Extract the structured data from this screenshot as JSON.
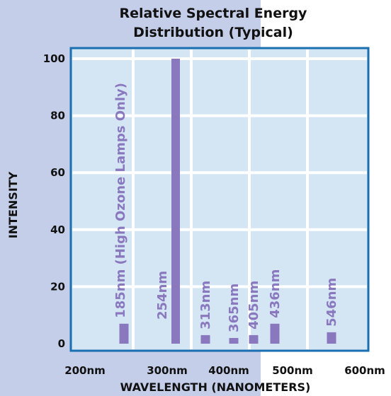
{
  "chart_data": {
    "type": "bar",
    "title": "Relative Spectral Energy Distribution (Typical)",
    "title_lines": [
      "Relative Spectral Energy",
      "Distribution (Typical)"
    ],
    "xlabel": "WAVELENGTH (NANOMETERS)",
    "ylabel": "INTENSITY",
    "x_ticks": [
      "200nm",
      "300nm",
      "400nm",
      "500nm",
      "600nm"
    ],
    "x_tick_values": [
      200,
      300,
      400,
      500,
      600
    ],
    "y_ticks": [
      "0",
      "20",
      "40",
      "60",
      "80",
      "100"
    ],
    "y_tick_values": [
      0,
      20,
      40,
      60,
      80,
      100
    ],
    "xlim": [
      200,
      600
    ],
    "ylim": [
      0,
      100
    ],
    "grid": true,
    "bars": [
      {
        "x": 185,
        "label": "185nm (High Ozone Lamps Only)",
        "value": 7
      },
      {
        "x": 254,
        "label": "254nm",
        "value": 100
      },
      {
        "x": 313,
        "label": "313nm",
        "value": 3
      },
      {
        "x": 365,
        "label": "365nm",
        "value": 2
      },
      {
        "x": 405,
        "label": "405nm",
        "value": 3
      },
      {
        "x": 436,
        "label": "436nm",
        "value": 7
      },
      {
        "x": 546,
        "label": "546nm",
        "value": 4
      }
    ],
    "colors": {
      "bar": "#8a78be",
      "plot_background": "#d4e6f4",
      "plot_border": "#1a6fb0",
      "grid": "#ffffff",
      "page_band": "#c4cee9"
    }
  }
}
